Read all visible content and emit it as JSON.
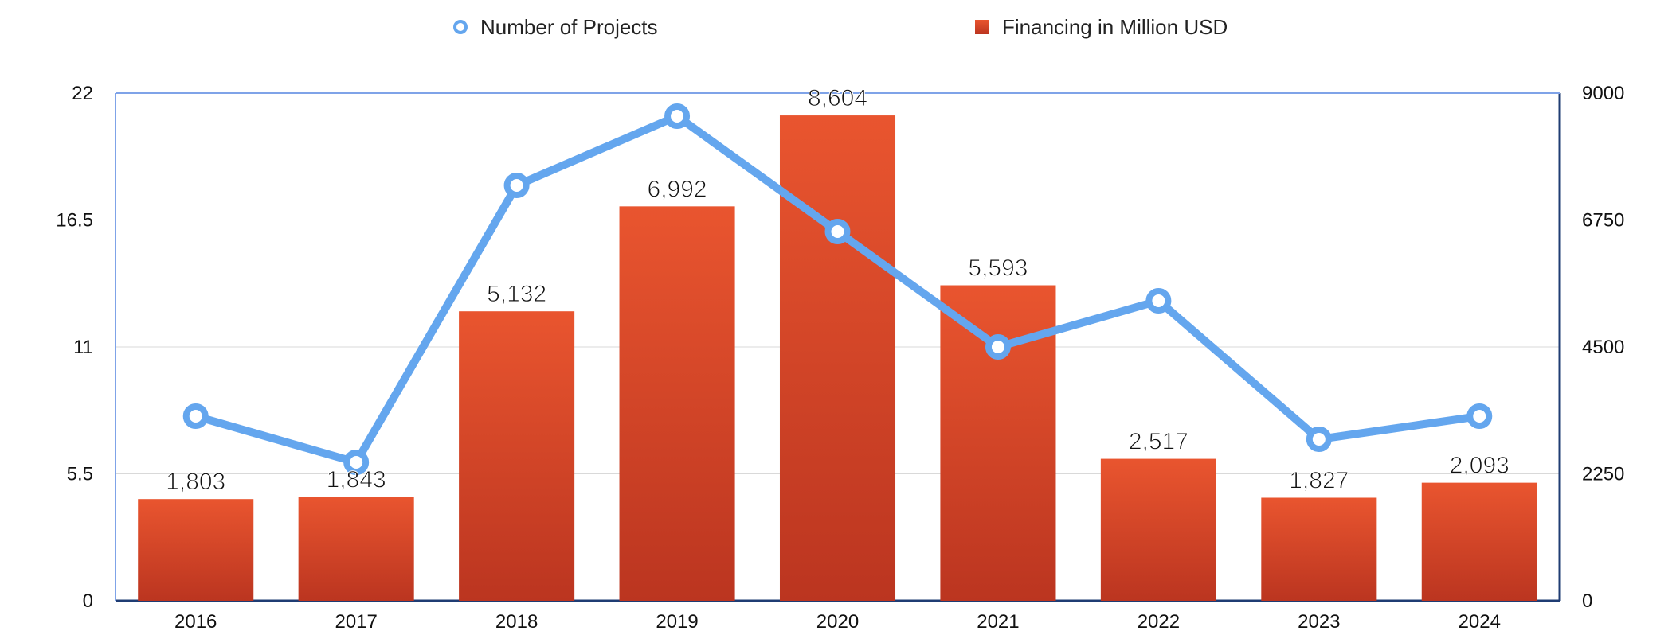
{
  "chart_data": {
    "type": "bar",
    "categories": [
      "2016",
      "2017",
      "2018",
      "2019",
      "2020",
      "2021",
      "2022",
      "2023",
      "2024"
    ],
    "series": [
      {
        "name": "Financing in Million USD",
        "type": "bar",
        "axis": "right",
        "values": [
          1803,
          1843,
          5132,
          6992,
          8604,
          5593,
          2517,
          1827,
          2093
        ],
        "labels": [
          "1,803",
          "1,843",
          "5,132",
          "6,992",
          "8,604",
          "5,593",
          "2,517",
          "1,827",
          "2,093"
        ]
      },
      {
        "name": "Number of Projects",
        "type": "line",
        "axis": "left",
        "values": [
          8,
          6,
          18,
          21,
          16,
          11,
          13,
          7,
          8
        ]
      }
    ],
    "left_axis": {
      "ylim": [
        0,
        22
      ],
      "ticks": [
        0,
        5.5,
        11,
        16.5,
        22
      ],
      "tick_labels": [
        "0",
        "5.5",
        "11",
        "16.5",
        "22"
      ]
    },
    "right_axis": {
      "ylim": [
        0,
        9000
      ],
      "ticks": [
        0,
        2250,
        4500,
        6750,
        9000
      ],
      "tick_labels": [
        "0",
        "2250",
        "4500",
        "6750",
        "9000"
      ]
    },
    "grid": true,
    "legend": "top"
  },
  "colors": {
    "bar_top": "#e9552f",
    "bar_bottom": "#bb3520",
    "line": "#64a6ee",
    "gridline": "#d9d9d9",
    "left_axis": "#7fa3e8",
    "right_axis": "#1f3c73"
  }
}
